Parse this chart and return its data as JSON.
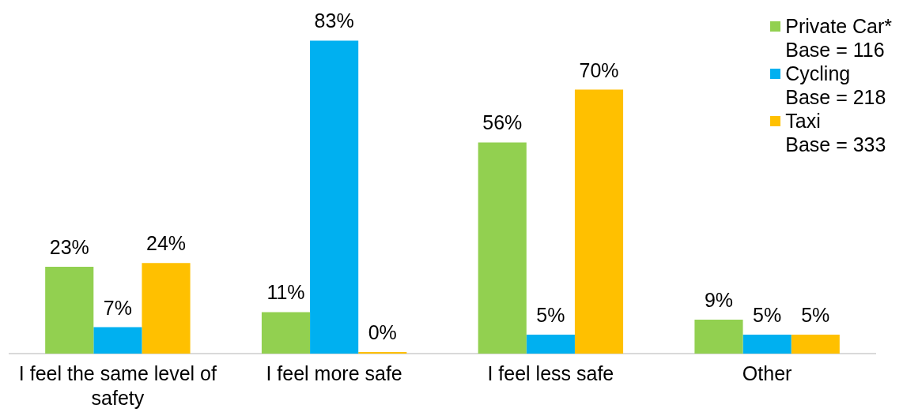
{
  "chart_data": {
    "type": "bar",
    "categories": [
      "I feel the same level of safety",
      "I feel more safe",
      "I feel less safe",
      "Other"
    ],
    "series": [
      {
        "name": "Private Car*\nBase = 116",
        "color": "#92d050",
        "values": [
          23,
          11,
          56,
          9
        ],
        "value_labels": [
          "23%",
          "11%",
          "56%",
          "9%"
        ]
      },
      {
        "name": "Cycling\nBase = 218",
        "color": "#00b0f0",
        "values": [
          7,
          83,
          5,
          5
        ],
        "value_labels": [
          "7%",
          "83%",
          "5%",
          "5%"
        ]
      },
      {
        "name": "Taxi\nBase = 333",
        "color": "#ffc000",
        "values": [
          24,
          0,
          70,
          5
        ],
        "value_labels": [
          "24%",
          "0%",
          "70%",
          "5%"
        ]
      }
    ],
    "legend": "top right",
    "tick_labels": "x"
  }
}
